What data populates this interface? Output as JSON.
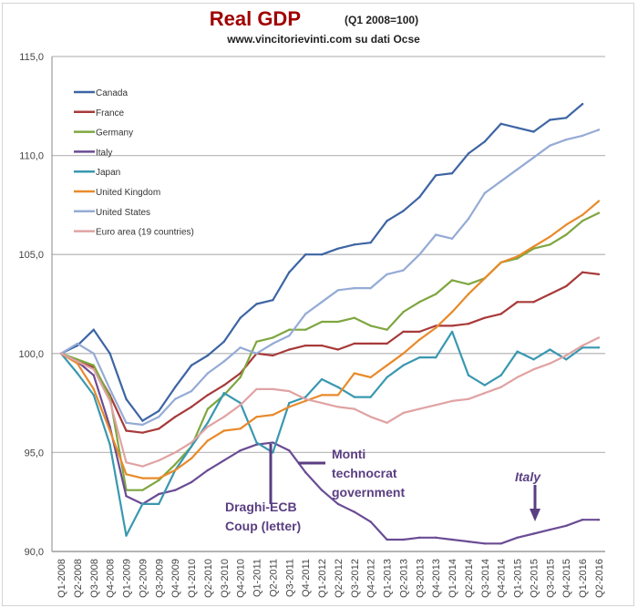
{
  "chart_data": {
    "type": "line",
    "title": "Real GDP",
    "title_note": "(Q1 2008=100)",
    "subtitle": "www.vincitorievinti.com su dati Ocse",
    "xlabel": "",
    "ylabel": "",
    "ylim": [
      90,
      115
    ],
    "yticks": [
      "90,0",
      "95,0",
      "100,0",
      "105,0",
      "110,0",
      "115,0"
    ],
    "grid": true,
    "legend": "top-left",
    "categories": [
      "Q1-2008",
      "Q2-2008",
      "Q3-2008",
      "Q4-2008",
      "Q1-2009",
      "Q2-2009",
      "Q3-2009",
      "Q4-2009",
      "Q1-2010",
      "Q2-2010",
      "Q3-2010",
      "Q4-2010",
      "Q1-2011",
      "Q2-2011",
      "Q3-2011",
      "Q4-2011",
      "Q1-2012",
      "Q2-2012",
      "Q3-2012",
      "Q4-2012",
      "Q1-2013",
      "Q2-2013",
      "Q3-2013",
      "Q4-2013",
      "Q1-2014",
      "Q2-2014",
      "Q3-2014",
      "Q4-2014",
      "Q1-2015",
      "Q2-2015",
      "Q3-2015",
      "Q4-2015",
      "Q1-2016",
      "Q2-2016"
    ],
    "series": [
      {
        "name": "Canada",
        "color": "#3d65a3",
        "values": [
          100,
          100.4,
          101.2,
          100,
          97.7,
          96.6,
          97.1,
          98.3,
          99.4,
          99.9,
          100.6,
          101.8,
          102.5,
          102.7,
          104.1,
          105,
          105,
          105.3,
          105.5,
          105.6,
          106.7,
          107.2,
          107.9,
          109,
          109.1,
          110.1,
          110.7,
          111.6,
          111.4,
          111.2,
          111.8,
          111.9,
          112.6,
          null
        ]
      },
      {
        "name": "France",
        "color": "#a83a3a",
        "values": [
          100,
          99.6,
          99.3,
          97.9,
          96.1,
          96,
          96.2,
          96.8,
          97.3,
          97.9,
          98.4,
          99,
          100,
          99.9,
          100.2,
          100.4,
          100.4,
          100.2,
          100.5,
          100.5,
          100.5,
          101.1,
          101.1,
          101.4,
          101.4,
          101.5,
          101.8,
          102,
          102.6,
          102.6,
          103,
          103.4,
          104.1,
          104
        ]
      },
      {
        "name": "Germany",
        "color": "#7fa640",
        "values": [
          100,
          99.7,
          99.4,
          97.8,
          93.1,
          93.1,
          93.6,
          94.4,
          95.3,
          97.2,
          97.9,
          98.8,
          100.6,
          100.8,
          101.2,
          101.2,
          101.6,
          101.6,
          101.8,
          101.4,
          101.2,
          102.1,
          102.6,
          103,
          103.7,
          103.5,
          103.8,
          104.6,
          104.8,
          105.3,
          105.5,
          106,
          106.7,
          107.1
        ]
      },
      {
        "name": "Italy",
        "color": "#6a4c94",
        "values": [
          100,
          99.6,
          98.9,
          96.3,
          92.8,
          92.4,
          92.9,
          93.1,
          93.5,
          94.1,
          94.6,
          95.1,
          95.4,
          95.5,
          95.1,
          94,
          93.1,
          92.4,
          92,
          91.5,
          90.6,
          90.6,
          90.7,
          90.7,
          90.6,
          90.5,
          90.4,
          90.4,
          90.7,
          90.9,
          91.1,
          91.3,
          91.6,
          91.6
        ]
      },
      {
        "name": "Japan",
        "color": "#3a98b0",
        "values": [
          100,
          99,
          97.9,
          95.4,
          90.8,
          92.4,
          92.4,
          94.1,
          95.3,
          96.5,
          98,
          97.5,
          95.5,
          95,
          97.5,
          97.8,
          98.7,
          98.3,
          97.8,
          97.8,
          98.8,
          99.4,
          99.8,
          99.8,
          101.1,
          98.9,
          98.4,
          98.9,
          100.1,
          99.7,
          100.2,
          99.7,
          100.3,
          100.3
        ]
      },
      {
        "name": "United Kingdom",
        "color": "#e88a2a",
        "values": [
          100,
          99.5,
          98.2,
          96.1,
          93.9,
          93.7,
          93.7,
          94.1,
          94.7,
          95.6,
          96.1,
          96.2,
          96.8,
          96.9,
          97.3,
          97.6,
          97.9,
          97.9,
          99,
          98.8,
          99.4,
          100,
          100.7,
          101.3,
          102.1,
          103,
          103.8,
          104.6,
          104.9,
          105.4,
          105.9,
          106.5,
          107,
          107.7
        ]
      },
      {
        "name": "United States",
        "color": "#95abd5",
        "values": [
          100,
          100.5,
          100,
          98.2,
          96.5,
          96.4,
          96.8,
          97.7,
          98.1,
          99,
          99.6,
          100.3,
          100,
          100.5,
          100.9,
          102,
          102.6,
          103.2,
          103.3,
          103.3,
          104,
          104.2,
          105,
          106,
          105.8,
          106.8,
          108.1,
          108.7,
          109.3,
          109.9,
          110.5,
          110.8,
          111,
          111.3
        ]
      },
      {
        "name": "Euro area (19 countries)",
        "color": "#e0a3a3",
        "values": [
          100,
          99.6,
          99.2,
          97.6,
          94.5,
          94.3,
          94.6,
          95,
          95.5,
          96.3,
          96.8,
          97.4,
          98.2,
          98.2,
          98.1,
          97.7,
          97.5,
          97.3,
          97.2,
          96.8,
          96.5,
          97,
          97.2,
          97.4,
          97.6,
          97.7,
          98,
          98.3,
          98.8,
          99.2,
          99.5,
          99.9,
          100.4,
          100.8
        ]
      }
    ],
    "annotations": {
      "monti": [
        "Monti",
        "technocrat",
        "government"
      ],
      "draghi": [
        "Draghi-ECB",
        "Coup (letter)"
      ],
      "italy": "Italy",
      "color": "#5a3e82"
    }
  }
}
